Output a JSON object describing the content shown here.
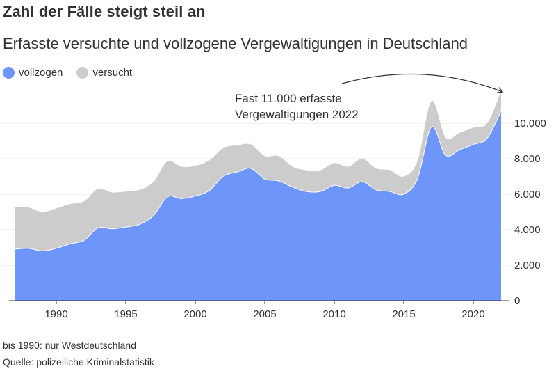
{
  "title": "Zahl der Fälle steigt steil an",
  "subtitle": "Erfasste versuchte und vollzogene Vergewaltigungen in Deutschland",
  "legend": {
    "vollzogen": "vollzogen",
    "versucht": "versucht"
  },
  "colors": {
    "vollzogen": "#6e96fa",
    "versucht": "#cccccc",
    "text": "#333333",
    "grid": "#e3e3e3"
  },
  "annotation": {
    "line1": "Fast 11.000 erfasste",
    "line2": "Vergewaltigungen 2022"
  },
  "note": "bis 1990: nur Westdeutschland",
  "source": "Quelle: polizeiliche Kriminalstatistik",
  "chart_data": {
    "type": "area",
    "stacked": true,
    "x": [
      1987,
      1988,
      1989,
      1990,
      1991,
      1992,
      1993,
      1994,
      1995,
      1996,
      1997,
      1998,
      1999,
      2000,
      2001,
      2002,
      2003,
      2004,
      2005,
      2006,
      2007,
      2008,
      2009,
      2010,
      2011,
      2012,
      2013,
      2014,
      2015,
      2016,
      2017,
      2018,
      2019,
      2020,
      2021,
      2022
    ],
    "series": [
      {
        "name": "vollzogen",
        "values": [
          2900,
          2950,
          2800,
          2950,
          3200,
          3400,
          4100,
          4050,
          4150,
          4300,
          4800,
          5850,
          5750,
          5900,
          6200,
          7000,
          7250,
          7450,
          6850,
          6750,
          6400,
          6150,
          6150,
          6500,
          6350,
          6700,
          6250,
          6150,
          6000,
          6900,
          9800,
          8200,
          8500,
          8800,
          9150,
          10700
        ]
      },
      {
        "name": "versucht",
        "values": [
          2400,
          2300,
          2200,
          2250,
          2250,
          2200,
          2200,
          2050,
          2000,
          1950,
          1900,
          2000,
          1800,
          1700,
          1700,
          1600,
          1500,
          1350,
          1300,
          1400,
          1150,
          1200,
          1200,
          1250,
          1200,
          1300,
          1200,
          1200,
          1000,
          1000,
          1450,
          1000,
          950,
          950,
          850,
          1100
        ]
      }
    ],
    "xticks": [
      1990,
      1995,
      2000,
      2005,
      2010,
      2015,
      2020
    ],
    "yticks": [
      0,
      2000,
      4000,
      6000,
      8000,
      10000
    ],
    "ytick_labels": [
      "0",
      "2.000",
      "4.000",
      "6.000",
      "8.000",
      "10.000"
    ],
    "xlim": [
      1986.6,
      2022.3
    ],
    "ylim": [
      0,
      12000
    ],
    "grid": "horizontal",
    "legend_position": "top-left"
  }
}
